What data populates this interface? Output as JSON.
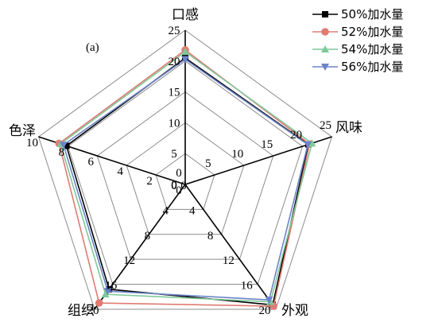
{
  "chart_data": {
    "type": "radar",
    "panel_label": "(a)",
    "grid": true,
    "legend_position": "top-right",
    "axes": [
      {
        "name": "口感",
        "max": 25,
        "ticks": [
          "0",
          "5",
          "10",
          "15",
          "20",
          "25"
        ]
      },
      {
        "name": "风味",
        "max": 25,
        "ticks": [
          "0",
          "5",
          "10",
          "15",
          "20",
          "25"
        ]
      },
      {
        "name": "外观",
        "max": 20,
        "ticks": [
          "0",
          "4",
          "8",
          "12",
          "16",
          "20"
        ]
      },
      {
        "name": "组织",
        "max": 20,
        "ticks": [
          "0",
          "4",
          "8",
          "12",
          "16",
          "20"
        ]
      },
      {
        "name": "色泽",
        "max": 10,
        "ticks": [
          "0",
          "2",
          "4",
          "6",
          "8",
          "10"
        ]
      }
    ],
    "series": [
      {
        "name": "50%加水量",
        "color": "#000000",
        "marker": "square",
        "values": [
          20.5,
          21.0,
          19.3,
          16.8,
          8.1
        ]
      },
      {
        "name": "52%加水量",
        "color": "#e07b73",
        "marker": "circle",
        "values": [
          21.8,
          21.2,
          19.5,
          19.0,
          8.6
        ]
      },
      {
        "name": "54%加水量",
        "color": "#7fc89a",
        "marker": "triangle",
        "values": [
          21.5,
          21.6,
          18.8,
          17.6,
          8.5
        ]
      },
      {
        "name": "56%加水量",
        "color": "#6b84c8",
        "marker": "triangle-down",
        "values": [
          20.3,
          20.9,
          18.5,
          17.1,
          8.3
        ]
      }
    ]
  }
}
